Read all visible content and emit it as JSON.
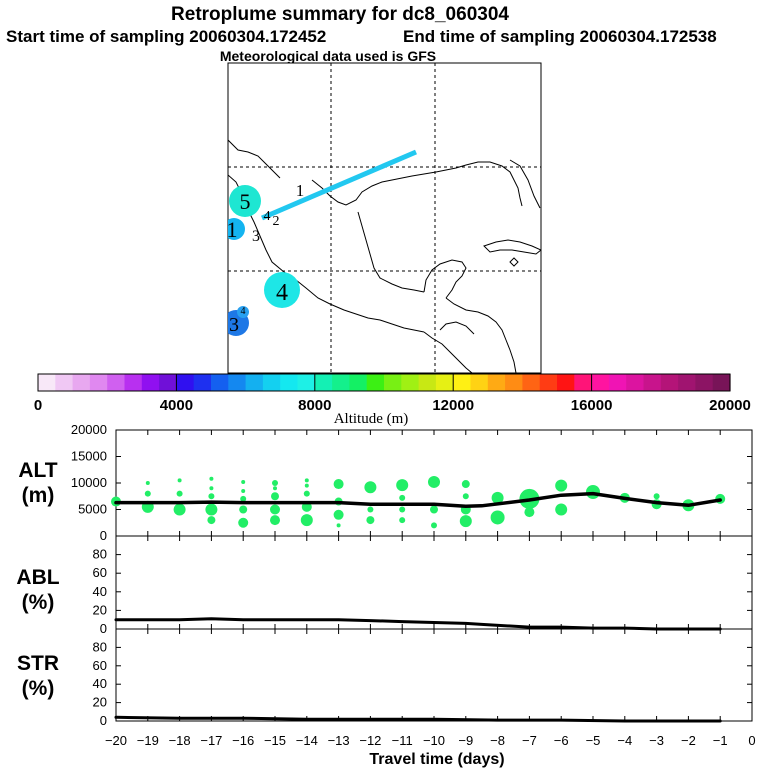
{
  "header": {
    "title": "Retroplume summary for dc8_060304",
    "start_label": "Start time of sampling 20060304.172452",
    "end_label": "End time of sampling 20060304.172538",
    "met_label": "Meteorological data used is GFS"
  },
  "map": {
    "trajectory_color": "#22c8f0",
    "plumes": [
      {
        "label": "5",
        "color": "#1ee6d2"
      },
      {
        "label": "1",
        "color": "#14b4f0"
      },
      {
        "label": "4",
        "color": "#1ee6e6"
      },
      {
        "label": "3",
        "color": "#1e78e6"
      },
      {
        "label": "4",
        "color": "#28a0f0"
      }
    ],
    "text_labels": [
      "1",
      "4",
      "2",
      "3"
    ]
  },
  "colorbar": {
    "label": "Altitude (m)",
    "tick_labels": [
      "0",
      "4000",
      "8000",
      "12000",
      "16000",
      "20000"
    ],
    "colors": [
      "#f8e8f8",
      "#f0c8f4",
      "#e8a8f0",
      "#e088f0",
      "#d060f0",
      "#b830f0",
      "#9010f0",
      "#7010d8",
      "#3010f0",
      "#1e30f0",
      "#1460f0",
      "#1488f0",
      "#14b0f0",
      "#14d0f0",
      "#14e8f0",
      "#1ef0e6",
      "#14f0b4",
      "#14f08c",
      "#14f064",
      "#3cf014",
      "#78f014",
      "#a0f014",
      "#c8e814",
      "#e6f014",
      "#fff014",
      "#ffd214",
      "#ffaa14",
      "#ff8c14",
      "#ff6414",
      "#ff3c14",
      "#ff1414",
      "#ff1478",
      "#ff14a0",
      "#f014b4",
      "#dc14a0",
      "#c8148c",
      "#b41478",
      "#a01470",
      "#8c1464",
      "#781458"
    ]
  },
  "chart_data": [
    {
      "type": "line",
      "name": "ALT",
      "ylabel": "ALT (m)",
      "ylim": [
        0,
        20000
      ],
      "yticks": [
        0,
        5000,
        10000,
        15000,
        20000
      ],
      "x": [
        -20,
        -19,
        -18,
        -17,
        -16,
        -15,
        -14,
        -13,
        -12,
        -11,
        -10,
        -9,
        -8.5,
        -7,
        -6,
        -5,
        -4,
        -3,
        -2,
        -1
      ],
      "values": [
        6300,
        6300,
        6300,
        6400,
        6300,
        6300,
        6300,
        6300,
        6000,
        6000,
        6000,
        5600,
        5700,
        6800,
        7700,
        8000,
        7100,
        6300,
        5800,
        6800
      ],
      "scatter_color": "#22ee66",
      "scatter": [
        {
          "x": -20,
          "y": 6500,
          "s": 5
        },
        {
          "x": -19,
          "y": 5500,
          "s": 6
        },
        {
          "x": -19,
          "y": 8000,
          "s": 3
        },
        {
          "x": -19,
          "y": 10000,
          "s": 2
        },
        {
          "x": -18,
          "y": 5000,
          "s": 6
        },
        {
          "x": -18,
          "y": 8000,
          "s": 3
        },
        {
          "x": -18,
          "y": 10500,
          "s": 2
        },
        {
          "x": -17,
          "y": 3000,
          "s": 4
        },
        {
          "x": -17,
          "y": 5000,
          "s": 6
        },
        {
          "x": -17,
          "y": 7500,
          "s": 3
        },
        {
          "x": -17,
          "y": 9000,
          "s": 2
        },
        {
          "x": -17,
          "y": 10800,
          "s": 2
        },
        {
          "x": -16,
          "y": 2500,
          "s": 5
        },
        {
          "x": -16,
          "y": 5000,
          "s": 4
        },
        {
          "x": -16,
          "y": 7000,
          "s": 3
        },
        {
          "x": -16,
          "y": 8500,
          "s": 2
        },
        {
          "x": -16,
          "y": 10200,
          "s": 2
        },
        {
          "x": -15,
          "y": 3000,
          "s": 5
        },
        {
          "x": -15,
          "y": 5000,
          "s": 5
        },
        {
          "x": -15,
          "y": 7500,
          "s": 4
        },
        {
          "x": -15,
          "y": 9000,
          "s": 2
        },
        {
          "x": -15,
          "y": 10000,
          "s": 3
        },
        {
          "x": -14,
          "y": 3000,
          "s": 6
        },
        {
          "x": -14,
          "y": 5500,
          "s": 5
        },
        {
          "x": -14,
          "y": 8000,
          "s": 3
        },
        {
          "x": -14,
          "y": 9500,
          "s": 2
        },
        {
          "x": -14,
          "y": 10500,
          "s": 2
        },
        {
          "x": -13,
          "y": 2000,
          "s": 2
        },
        {
          "x": -13,
          "y": 4000,
          "s": 5
        },
        {
          "x": -13,
          "y": 6500,
          "s": 4
        },
        {
          "x": -13,
          "y": 9800,
          "s": 5
        },
        {
          "x": -12,
          "y": 3000,
          "s": 4
        },
        {
          "x": -12,
          "y": 5000,
          "s": 3
        },
        {
          "x": -12,
          "y": 9200,
          "s": 6
        },
        {
          "x": -11,
          "y": 3000,
          "s": 3
        },
        {
          "x": -11,
          "y": 5000,
          "s": 3
        },
        {
          "x": -11,
          "y": 7200,
          "s": 3
        },
        {
          "x": -11,
          "y": 9600,
          "s": 6
        },
        {
          "x": -10,
          "y": 2000,
          "s": 3
        },
        {
          "x": -10,
          "y": 5000,
          "s": 4
        },
        {
          "x": -10,
          "y": 10200,
          "s": 6
        },
        {
          "x": -9,
          "y": 2800,
          "s": 6
        },
        {
          "x": -9,
          "y": 5000,
          "s": 5
        },
        {
          "x": -9,
          "y": 7500,
          "s": 3
        },
        {
          "x": -9,
          "y": 9800,
          "s": 4
        },
        {
          "x": -8,
          "y": 3500,
          "s": 7
        },
        {
          "x": -8,
          "y": 7200,
          "s": 6
        },
        {
          "x": -7,
          "y": 4500,
          "s": 5
        },
        {
          "x": -7,
          "y": 7000,
          "s": 10
        },
        {
          "x": -6,
          "y": 5000,
          "s": 6
        },
        {
          "x": -6,
          "y": 9500,
          "s": 6
        },
        {
          "x": -5,
          "y": 8300,
          "s": 7
        },
        {
          "x": -4,
          "y": 7200,
          "s": 5
        },
        {
          "x": -3,
          "y": 6000,
          "s": 5
        },
        {
          "x": -3,
          "y": 7500,
          "s": 3
        },
        {
          "x": -2,
          "y": 5800,
          "s": 6
        },
        {
          "x": -1,
          "y": 7000,
          "s": 5
        }
      ]
    },
    {
      "type": "line",
      "name": "ABL",
      "ylabel": "ABL (%)",
      "ylim": [
        0,
        100
      ],
      "yticks": [
        0,
        20,
        40,
        60,
        80
      ],
      "x": [
        -20,
        -18,
        -17,
        -16,
        -15,
        -14,
        -13,
        -12,
        -11,
        -10,
        -9,
        -8.5,
        -7,
        -6,
        -5,
        -4,
        -3,
        -2,
        -1
      ],
      "values": [
        10,
        10,
        11,
        10,
        10,
        10,
        10,
        9,
        8,
        7,
        6,
        5,
        2,
        2,
        1,
        1,
        0,
        0,
        0
      ]
    },
    {
      "type": "line",
      "name": "STR",
      "ylabel": "STR (%)",
      "ylim": [
        0,
        100
      ],
      "yticks": [
        0,
        20,
        40,
        60,
        80
      ],
      "x": [
        -20,
        -18,
        -16,
        -14,
        -12,
        -10,
        -8,
        -7,
        -6,
        -4,
        -2,
        -1
      ],
      "values": [
        4,
        3,
        3,
        2,
        2,
        2,
        1,
        1,
        1,
        0,
        0,
        0
      ]
    }
  ],
  "xaxis": {
    "label": "Travel time (days)",
    "xlim": [
      -20,
      0
    ],
    "tick_labels": [
      "−20",
      "−19",
      "−18",
      "−17",
      "−16",
      "−15",
      "−14",
      "−13",
      "−12",
      "−11",
      "−10",
      "−9",
      "−8",
      "−7",
      "−6",
      "−5",
      "−4",
      "−3",
      "−2",
      "−1",
      "0"
    ]
  }
}
